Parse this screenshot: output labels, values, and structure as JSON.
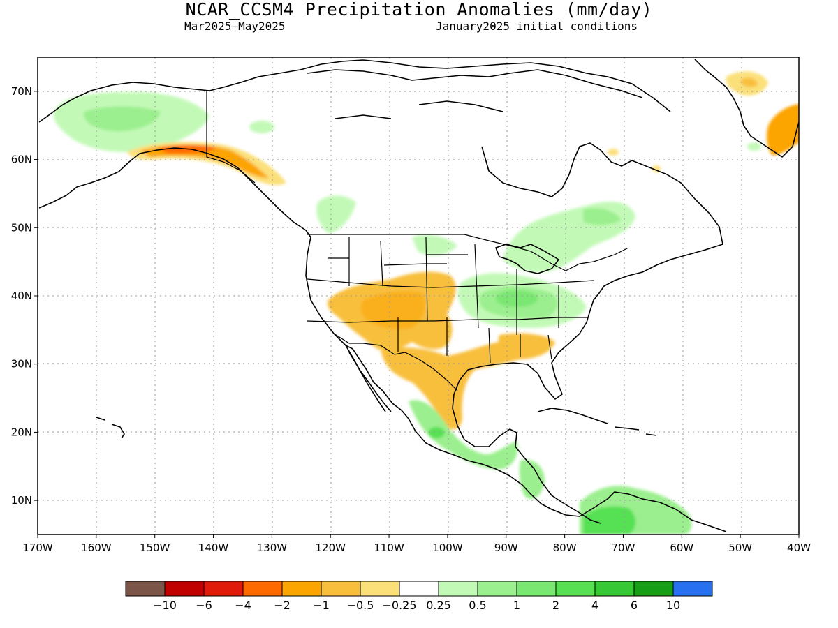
{
  "title": "NCAR_CCSM4 Precipitation Anomalies (mm/day)",
  "subtitle_left": "Mar2025–May2025",
  "subtitle_right": "January2025 initial conditions",
  "map": {
    "lon_range": [
      -170,
      -40
    ],
    "lat_range": [
      5,
      75
    ],
    "x_ticks": [
      "170W",
      "160W",
      "150W",
      "140W",
      "130W",
      "120W",
      "110W",
      "100W",
      "90W",
      "80W",
      "70W",
      "60W",
      "50W",
      "40W"
    ],
    "y_ticks": [
      "10N",
      "20N",
      "30N",
      "40N",
      "50N",
      "60N",
      "70N"
    ]
  },
  "colorbar": {
    "colors": [
      "#7b5547",
      "#c10000",
      "#e11b0a",
      "#ff6a00",
      "#fca400",
      "#f8bf3d",
      "#fbe07a",
      "#ffffff",
      "#c3f9b7",
      "#9bef8e",
      "#7ae772",
      "#56e052",
      "#36c935",
      "#169e16",
      "#2770f0"
    ],
    "labels": [
      "−10",
      "−6",
      "−4",
      "−2",
      "−1",
      "−0.5",
      "−0.25",
      "0.25",
      "0.5",
      "1",
      "2",
      "4",
      "6",
      "10"
    ]
  }
}
